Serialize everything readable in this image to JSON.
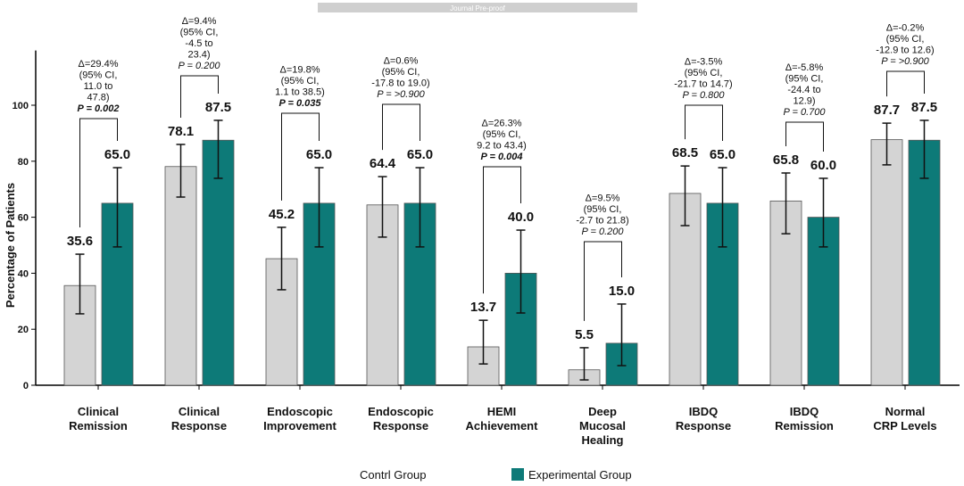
{
  "chart_data": {
    "type": "bar",
    "watermark": "Journal Pre-proof",
    "y_label": "Percentage of Patients",
    "categories": [
      [
        "Clinical",
        "Remission"
      ],
      [
        "Clinical",
        "Response"
      ],
      [
        "Endoscopic",
        "Improvement"
      ],
      [
        "Endoscopic",
        "Response"
      ],
      [
        "HEMI",
        "Achievement"
      ],
      [
        "Deep",
        "Mucosal",
        "Healing"
      ],
      [
        "IBDQ",
        "Response"
      ],
      [
        "IBDQ",
        "Remission"
      ],
      [
        "Normal",
        "CRP Levels"
      ]
    ],
    "series": [
      {
        "name": "Contrl Group",
        "color": "#d4d4d4",
        "values": [
          35.6,
          78.1,
          45.2,
          64.4,
          13.7,
          5.5,
          68.5,
          65.8,
          87.7
        ],
        "value_labels": [
          "35.6",
          "78.1",
          "45.2",
          "64.4",
          "13.7",
          "5.5",
          "68.5",
          "65.8",
          "87.7"
        ],
        "lower": [
          25.5,
          67.2,
          34.1,
          52.9,
          7.6,
          1.9,
          57,
          54.1,
          78.7
        ],
        "upper": [
          46.8,
          86,
          56.4,
          74.5,
          23.2,
          13.4,
          78.3,
          75.8,
          93.6
        ]
      },
      {
        "name": "Experimental Group",
        "color": "#0d7a78",
        "values": [
          65,
          87.5,
          65,
          65,
          40,
          15,
          65,
          60,
          87.5
        ],
        "value_labels": [
          "65.0",
          "87.5",
          "65.0",
          "65.0",
          "40.0",
          "15.0",
          "65.0",
          "60.0",
          "87.5"
        ],
        "lower": [
          49.4,
          73.9,
          49.4,
          49.4,
          25.8,
          7,
          49.4,
          49.4,
          73.9
        ],
        "upper": [
          77.7,
          94.6,
          77.7,
          77.7,
          55.4,
          29,
          77.7,
          73.9,
          94.6
        ]
      }
    ],
    "annotations": [
      [
        "Δ=29.4%",
        "(95% CI,",
        "11.0 to",
        "47.8)",
        "P = 0.002"
      ],
      [
        "Δ=9.4%",
        "(95% CI,",
        "-4.5  to",
        "23.4)",
        "P = 0.200"
      ],
      [
        "Δ=19.8%",
        "(95% CI,",
        "1.1 to 38.5)",
        "P = 0.035"
      ],
      [
        "Δ=0.6%",
        "(95% CI,",
        "-17.8 to 19.0)",
        "P = >0.900"
      ],
      [
        "Δ=26.3%",
        "(95% CI,",
        "9.2 to 43.4)",
        "P = 0.004"
      ],
      [
        "Δ=9.5%",
        "(95% CI,",
        "-2.7 to 21.8)",
        "P = 0.200"
      ],
      [
        "Δ=-3.5%",
        "(95% CI,",
        "-21.7 to 14.7)",
        "P = 0.800"
      ],
      [
        "Δ=-5.8%",
        "(95% CI,",
        "-24.4 to",
        "12.9)",
        "P = 0.700"
      ],
      [
        "Δ=-0.2%",
        "(95% CI,",
        "-12.9 to 12.6)",
        "P = >0.900"
      ]
    ],
    "significant": [
      true,
      false,
      true,
      false,
      true,
      false,
      false,
      false,
      false
    ],
    "ylim": [
      0,
      110
    ],
    "yticks": [
      0,
      20,
      40,
      60,
      80,
      100
    ]
  }
}
